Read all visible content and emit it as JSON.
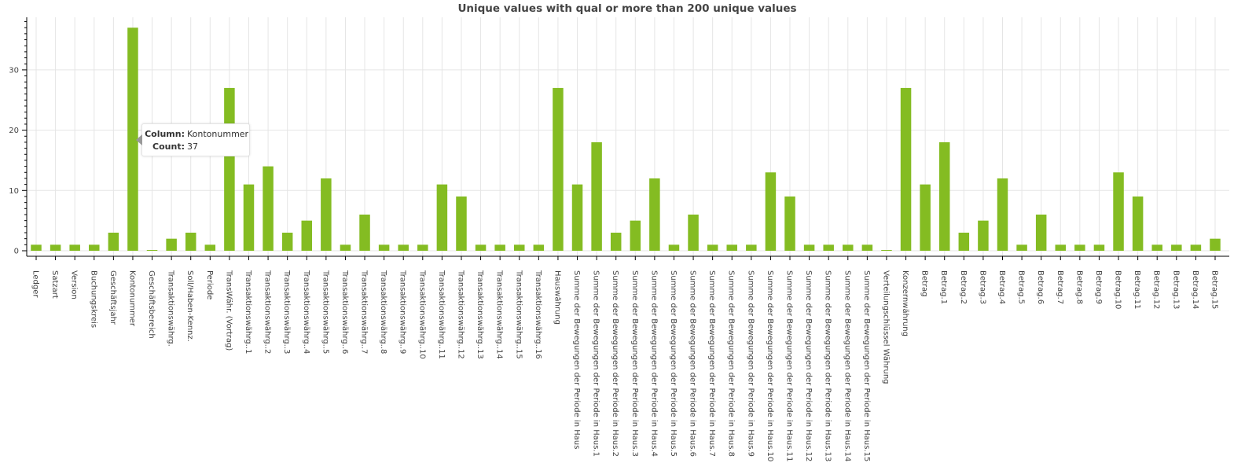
{
  "chart_data": {
    "type": "bar",
    "title": "Unique values with qual or more than 200  unique values",
    "xlabel": "",
    "ylabel": "",
    "ylim": [
      0,
      38
    ],
    "yticks": [
      0,
      10,
      20,
      30
    ],
    "grid": true,
    "bar_color": "#84bc22",
    "categories": [
      "Ledger",
      "Satzart",
      "Version",
      "Buchungskreis",
      "Geschäftsjahr",
      "Kontonummer",
      "Geschäftsbereich",
      "Transaktionswährg.",
      "Soll/Haben-Kennz.",
      "Periode",
      "TransWähr. (Vortrag)",
      "Transaktionswährg..1",
      "Transaktionswährg..2",
      "Transaktionswährg..3",
      "Transaktionswährg..4",
      "Transaktionswährg..5",
      "Transaktionswährg..6",
      "Transaktionswährg..7",
      "Transaktionswährg..8",
      "Transaktionswährg..9",
      "Transaktionswährg..10",
      "Transaktionswährg..11",
      "Transaktionswährg..12",
      "Transaktionswährg..13",
      "Transaktionswährg..14",
      "Transaktionswährg..15",
      "Transaktionswährg..16",
      "Hauswährung",
      "Summe der Bewegungen der Periode in Haus",
      "Summe der Bewegungen der Periode in Haus.1",
      "Summe der Bewegungen der Periode in Haus.2",
      "Summe der Bewegungen der Periode in Haus.3",
      "Summe der Bewegungen der Periode in Haus.4",
      "Summe der Bewegungen der Periode in Haus.5",
      "Summe der Bewegungen der Periode in Haus.6",
      "Summe der Bewegungen der Periode in Haus.7",
      "Summe der Bewegungen der Periode in Haus.8",
      "Summe der Bewegungen der Periode in Haus.9",
      "Summe der Bewegungen der Periode in Haus.10",
      "Summe der Bewegungen der Periode in Haus.11",
      "Summe der Bewegungen der Periode in Haus.12",
      "Summe der Bewegungen der Periode in Haus.13",
      "Summe der Bewegungen der Periode in Haus.14",
      "Summe der Bewegungen der Periode in Haus.15",
      "Verteilungschlüssel Währung",
      "Konzernwährung",
      "Betrag",
      "Betrag.1",
      "Betrag.2",
      "Betrag.3",
      "Betrag.4",
      "Betrag.5",
      "Betrag.6",
      "Betrag.7",
      "Betrag.8",
      "Betrag.9",
      "Betrag.10",
      "Betrag.11",
      "Betrag.12",
      "Betrag.13",
      "Betrag.14",
      "Betrag.15"
    ],
    "values": [
      1,
      1,
      1,
      1,
      3,
      37,
      0,
      2,
      3,
      1,
      27,
      11,
      14,
      3,
      5,
      12,
      1,
      6,
      1,
      1,
      1,
      11,
      9,
      1,
      1,
      1,
      1,
      27,
      11,
      18,
      3,
      5,
      12,
      1,
      6,
      1,
      1,
      1,
      13,
      9,
      1,
      1,
      1,
      1,
      0,
      27,
      11,
      18,
      3,
      5,
      12,
      1,
      6,
      1,
      1,
      1,
      13,
      9,
      1,
      1,
      1,
      2
    ]
  },
  "tooltip": {
    "column_label": "Column:",
    "column_value": "Kontonummer",
    "count_label": "Count:",
    "count_value": "37"
  }
}
